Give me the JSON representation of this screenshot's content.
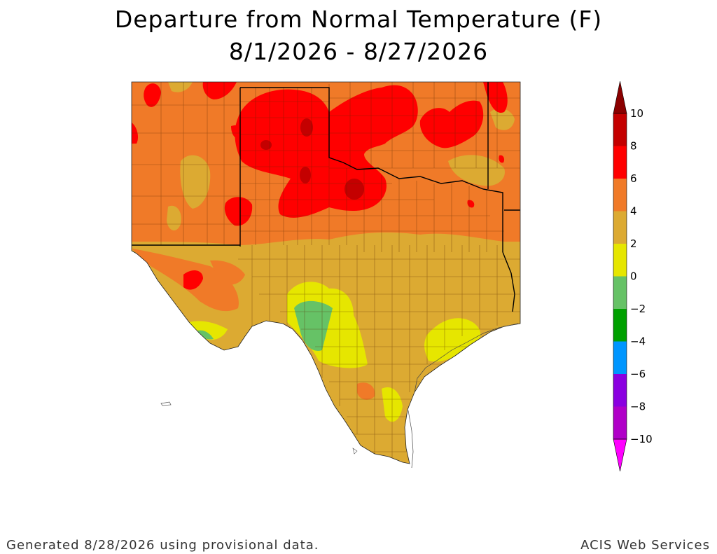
{
  "title": "Departure from Normal Temperature (F)",
  "date_range": "8/1/2026 - 8/27/2026",
  "legend": {
    "bins": [
      {
        "label": "10",
        "color": "#8b0000"
      },
      {
        "label": "8",
        "color": "#c40000"
      },
      {
        "label": "6",
        "color": "#ff0000"
      },
      {
        "label": "4",
        "color": "#f07a28"
      },
      {
        "label": "2",
        "color": "#dcaa32"
      },
      {
        "label": "0",
        "color": "#e6e600"
      },
      {
        "label": "−2",
        "color": "#66c266"
      },
      {
        "label": "−4",
        "color": "#00a000"
      },
      {
        "label": "−6",
        "color": "#0096ff"
      },
      {
        "label": "−8",
        "color": "#8a00e0"
      },
      {
        "label": "−10",
        "color": "#b000c8"
      }
    ],
    "bottom_color": "#ff00ff"
  },
  "footer": {
    "generated": "Generated 8/28/2026  using provisional data.",
    "source": "ACIS Web Services"
  }
}
